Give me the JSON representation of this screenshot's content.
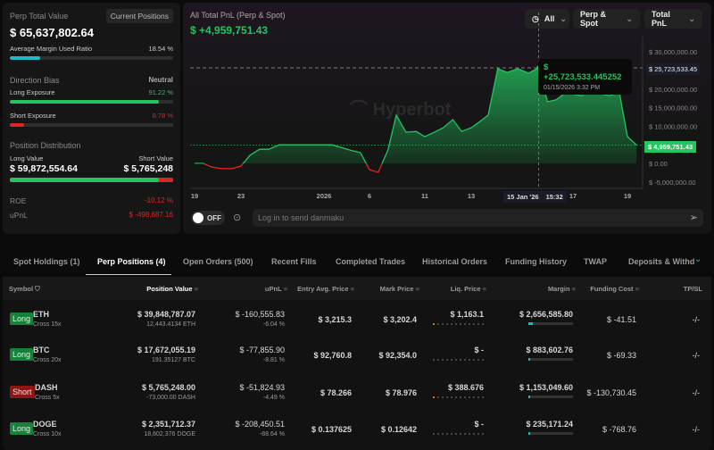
{
  "summary": {
    "title": "Perp Total Value",
    "current_positions_label": "Current Positions",
    "total_value": "$ 65,637,802.64",
    "margin_ratio_label": "Average Margin Used Ratio",
    "margin_ratio_value": "18.54 %",
    "margin_ratio_pct": 18.54,
    "direction_bias_label": "Direction Bias",
    "direction_bias_value": "Neutral",
    "long_exposure_label": "Long Exposure",
    "long_exposure_value": "91.22 %",
    "long_exposure_pct": 91.22,
    "short_exposure_label": "Short Exposure",
    "short_exposure_value": "8.78 %",
    "short_exposure_pct": 8.78,
    "distribution_label": "Position Distribution",
    "long_value_label": "Long Value",
    "long_value": "$ 59,872,554.64",
    "short_value_label": "Short Value",
    "short_value": "$ 5,765,248",
    "long_share_pct": 91.22,
    "roe_label": "ROE",
    "roe_value": "-10.12 %",
    "upnl_label": "uPnL",
    "upnl_value": "$ -498,687.16"
  },
  "chart": {
    "title": "All Total PnL (Perp & Spot)",
    "value": "$ +4,959,751.43",
    "filters": {
      "range": "All",
      "market": "Perp & Spot",
      "metric": "Total PnL"
    },
    "tooltip": {
      "value": "$ +25,723,533.445252",
      "date": "01/15/2026 3:32 PM"
    },
    "crosshair_y_label": "$ 25,723,533.45",
    "crosshair_x_label": [
      "15 Jan '26",
      "15:32"
    ],
    "current_label": "$ 4,959,751.43",
    "watermark": "Hyperbot",
    "toggle_label": "OFF",
    "danmaku_placeholder": "Log in to send danmaku"
  },
  "chart_data": {
    "type": "area",
    "ylim": [
      -5000000,
      30000000
    ],
    "y_ticks": [
      "$ 30,000,000.00",
      "$ 20,000,000.00",
      "$ 15,000,000.00",
      "$ 10,000,000.00",
      "$ 0.00",
      "$ -5,000,000.00"
    ],
    "y_tick_values": [
      30000000,
      20000000,
      15000000,
      10000000,
      0,
      -5000000
    ],
    "x_ticks": [
      "19",
      "23",
      "2026",
      "6",
      "11",
      "13",
      "17",
      "19"
    ],
    "x_tick_dates": [
      "2025-12-19",
      "2025-12-23",
      "2026-01-01",
      "2026-01-06",
      "2026-01-11",
      "2026-01-13",
      "2026-01-17",
      "2026-01-19"
    ],
    "colors": {
      "positive": "#22c55e",
      "negative": "#e02424"
    },
    "points": [
      [
        "2025-12-19T00:00",
        0
      ],
      [
        "2025-12-19T18:00",
        0
      ],
      [
        "2025-12-20T12:00",
        -1000000
      ],
      [
        "2025-12-21T07:00",
        -1400000
      ],
      [
        "2025-12-22T06:00",
        -1400000
      ],
      [
        "2025-12-23T00:00",
        -700000
      ],
      [
        "2025-12-24T00:00",
        2200000
      ],
      [
        "2025-12-25T00:00",
        3800000
      ],
      [
        "2025-12-26T00:00",
        3800000
      ],
      [
        "2025-12-27T04:00",
        5000000
      ],
      [
        "2026-01-01T21:00",
        5000000
      ],
      [
        "2026-01-02T21:00",
        4300000
      ],
      [
        "2026-01-04T03:00",
        3400000
      ],
      [
        "2026-01-05T00:00",
        2900000
      ],
      [
        "2026-01-06T00:00",
        -1700000
      ],
      [
        "2026-01-06T19:00",
        -2400000
      ],
      [
        "2026-01-07T16:00",
        3600000
      ],
      [
        "2026-01-08T10:00",
        13000000
      ],
      [
        "2026-01-09T07:00",
        8400000
      ],
      [
        "2026-01-10T05:00",
        8600000
      ],
      [
        "2026-01-11T00:00",
        7200000
      ],
      [
        "2026-01-11T10:00",
        8400000
      ],
      [
        "2026-01-11T19:00",
        9600000
      ],
      [
        "2026-01-12T05:00",
        11800000
      ],
      [
        "2026-01-12T14:00",
        8600000
      ],
      [
        "2026-01-13T00:00",
        9600000
      ],
      [
        "2026-01-13T07:00",
        11000000
      ],
      [
        "2026-01-13T16:00",
        13000000
      ],
      [
        "2026-01-14T01:00",
        25500000
      ],
      [
        "2026-01-14T10:00",
        24500000
      ],
      [
        "2026-01-14T20:00",
        25500000
      ],
      [
        "2026-01-15T06:00",
        24300000
      ],
      [
        "2026-01-15T15:32",
        25723533.445252
      ],
      [
        "2026-01-16T00:00",
        16600000
      ],
      [
        "2026-01-16T08:00",
        17100000
      ],
      [
        "2026-01-16T17:00",
        19000000
      ],
      [
        "2026-01-17T08:00",
        18200000
      ],
      [
        "2026-01-17T16:00",
        20400000
      ],
      [
        "2026-01-18T01:00",
        18700000
      ],
      [
        "2026-01-18T08:00",
        18200000
      ],
      [
        "2026-01-18T17:00",
        19000000
      ],
      [
        "2026-01-19T00:00",
        7200000
      ],
      [
        "2026-01-19T08:00",
        4959751.43
      ]
    ]
  },
  "tabs": [
    "Spot Holdings (1)",
    "Perp Positions (4)",
    "Open Orders (500)",
    "Recent Fills",
    "Completed Trades",
    "Historical Orders",
    "Funding History",
    "TWAP",
    "Deposits & Withd"
  ],
  "active_tab": "Perp Positions (4)",
  "table": {
    "headers": [
      "Symbol",
      "Position Value",
      "uPnL",
      "Entry Avg. Price",
      "Mark Price",
      "Liq. Price",
      "Margin",
      "Funding Cost",
      "TP/SL"
    ],
    "rows": [
      {
        "side": "Long",
        "symbol": "ETH",
        "leverage": "Cross 15x",
        "value": "$ 39,848,787.07",
        "size": "12,443.4134 ETH",
        "upnl": "$ -160,555.83",
        "upnl_pct": "-6.04 %",
        "entry": "$ 3,215.3",
        "mark": "$ 3,202.4",
        "liq": "$ 1,163.1",
        "liq_risk": 1,
        "margin": "$ 2,656,585.80",
        "margin_share": 0.3,
        "funding": "$ -41.51",
        "tpsl": "-/-"
      },
      {
        "side": "Long",
        "symbol": "BTC",
        "leverage": "Cross 20x",
        "value": "$ 17,672,055.19",
        "size": "191.35127 BTC",
        "upnl": "$ -77,855.90",
        "upnl_pct": "-8.81 %",
        "entry": "$ 92,760.8",
        "mark": "$ 92,354.0",
        "liq": "$ -",
        "liq_risk": 0,
        "margin": "$ 883,602.76",
        "margin_share": 0.1,
        "funding": "$ -69.33",
        "tpsl": "-/-"
      },
      {
        "side": "Short",
        "symbol": "DASH",
        "leverage": "Cross 5x",
        "value": "$ 5,765,248.00",
        "size": "-73,000.00 DASH",
        "upnl": "$ -51,824.93",
        "upnl_pct": "-4.49 %",
        "entry": "$ 78.266",
        "mark": "$ 78.976",
        "liq": "$ 388.676",
        "liq_risk": 1,
        "margin": "$ 1,153,049.60",
        "margin_share": 0.1,
        "funding": "$ -130,730.45",
        "tpsl": "-/-"
      },
      {
        "side": "Long",
        "symbol": "DOGE",
        "leverage": "Cross 10x",
        "value": "$ 2,351,712.37",
        "size": "18,602,376 DOGE",
        "upnl": "$ -208,450.51",
        "upnl_pct": "-88.64 %",
        "entry": "$ 0.137625",
        "mark": "$ 0.12642",
        "liq": "$ -",
        "liq_risk": 0,
        "margin": "$ 235,171.24",
        "margin_share": 0.03,
        "funding": "$ -768.76",
        "tpsl": "-/-"
      }
    ]
  }
}
